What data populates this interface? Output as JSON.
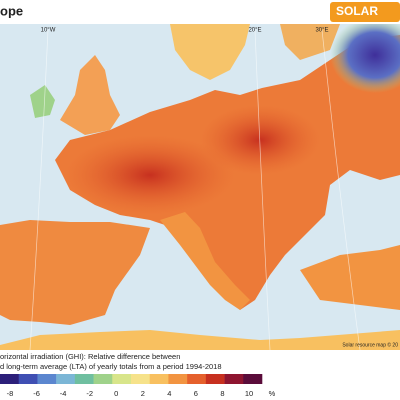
{
  "header": {
    "title": "ope",
    "logo": "SOLAR"
  },
  "map": {
    "graticule_labels": [
      "10°W",
      "20°E",
      "30°E"
    ],
    "attribution": "Solar resource map © 20"
  },
  "legend": {
    "caption": [
      "orizontal irradiation (GHI): Relative difference between",
      "d long-term average (LTA) of yearly totals from a period 1994-2018"
    ],
    "ticks": [
      -8,
      -6,
      -4,
      -2,
      0,
      2,
      4,
      6,
      8,
      10
    ],
    "unit": "%",
    "colors": [
      "#2c1f7a",
      "#3f4fb3",
      "#5b86cf",
      "#7bb6d6",
      "#6fbfa0",
      "#9fd28a",
      "#d8e58a",
      "#f6e28a",
      "#f8c060",
      "#f29441",
      "#e5602c",
      "#c7301f",
      "#8e1530",
      "#5a0c3a"
    ]
  }
}
